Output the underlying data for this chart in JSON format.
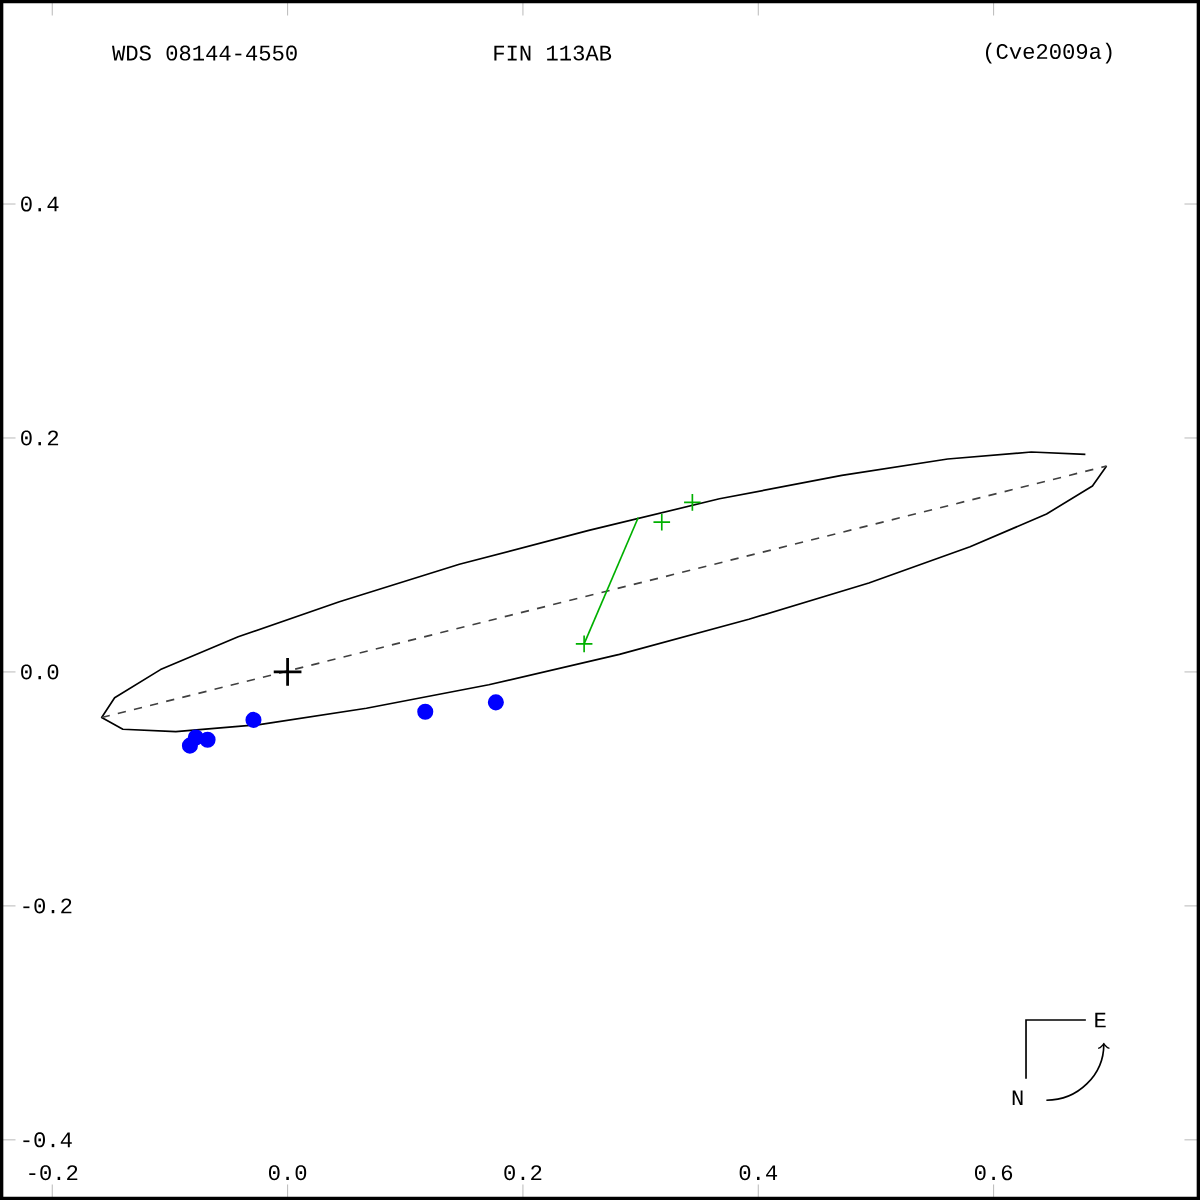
{
  "chart_data": {
    "type": "scatter",
    "title": "WDS 08144-4550",
    "subtitle": "FIN 113AB",
    "annotations": [
      "(Cve2009a)",
      "N",
      "E"
    ],
    "xlim": [
      -0.243,
      0.774
    ],
    "ylim": [
      -0.45,
      0.573
    ],
    "xticks": [
      -0.2,
      {
        "value": 0.0,
        "label": "0.0"
      },
      0.2,
      0.4,
      0.6
    ],
    "yticks": [
      0.4,
      0.2,
      {
        "value": 0.0,
        "label": "0.0"
      },
      -0.2,
      -0.4
    ],
    "series": [
      {
        "type": "line",
        "color": "#000000",
        "marker": "none",
        "line_style": "solid",
        "x": [
          0.696,
          0.684,
          0.645,
          0.58,
          0.494,
          0.392,
          0.282,
          0.171,
          0.067,
          -0.024,
          -0.095,
          -0.14,
          -0.158,
          -0.147,
          -0.108,
          -0.042,
          0.044,
          0.146,
          0.256,
          0.367,
          0.471,
          0.561,
          0.632,
          0.678
        ],
        "values": [
          0.176,
          0.159,
          0.135,
          0.107,
          0.076,
          0.045,
          0.015,
          -0.011,
          -0.031,
          -0.045,
          -0.051,
          -0.049,
          -0.039,
          -0.022,
          0.002,
          0.03,
          0.06,
          0.092,
          0.121,
          0.148,
          0.168,
          0.182,
          0.188,
          0.186
        ]
      },
      {
        "type": "line",
        "color": "#404040",
        "marker": "none",
        "line_style": "dashed",
        "x": [
          -0.158,
          0.696
        ],
        "values": [
          -0.039,
          0.176
        ]
      },
      {
        "color": "#000000",
        "marker": "cross",
        "x": [
          0.0
        ],
        "values": [
          0.0
        ]
      },
      {
        "color": "#0000ff",
        "marker": "circle",
        "x": [
          -0.083,
          -0.078,
          -0.068,
          -0.029,
          0.117,
          0.177
        ],
        "values": [
          -0.063,
          -0.056,
          -0.058,
          -0.041,
          -0.034,
          -0.026
        ]
      },
      {
        "type": "line",
        "color": "#00b000",
        "marker": "none",
        "line_style": "solid",
        "x": [
          0.252,
          0.298
        ],
        "values": [
          0.024,
          0.132
        ]
      },
      {
        "color": "#00b000",
        "marker": "cross",
        "x": [
          0.252,
          0.318,
          0.344
        ],
        "values": [
          0.024,
          0.128,
          0.145
        ]
      }
    ]
  }
}
